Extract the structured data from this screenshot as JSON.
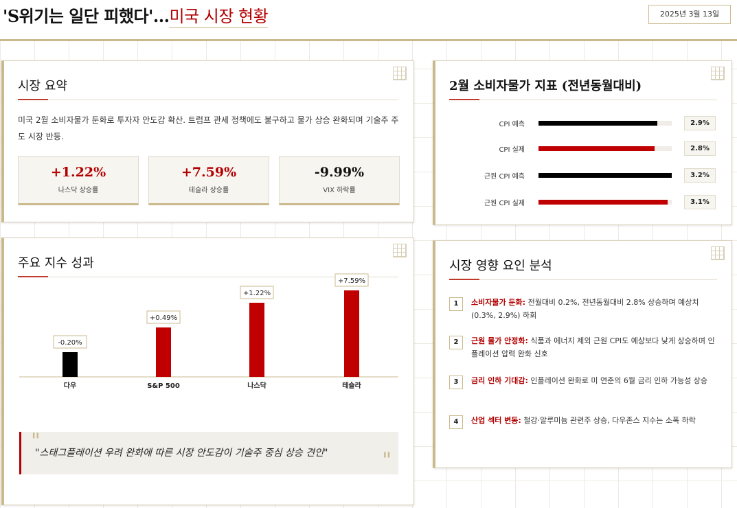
{
  "header": {
    "title_prefix": "'S위기는 일단 피했다'...",
    "title_accent": "미국 시장 현황",
    "date": "2025년 3월 13일"
  },
  "summary": {
    "title": "시장 요약",
    "text": "미국 2월 소비자물가 둔화로 투자자 안도감 확산. 트럼프 관세 정책에도 불구하고 물가 상승 완화되며 기술주 주도 시장 반등.",
    "stats": [
      {
        "value": "+1.22%",
        "label": "나스닥 상승률",
        "color": "#b30000"
      },
      {
        "value": "+7.59%",
        "label": "테슬라 상승률",
        "color": "#b30000"
      },
      {
        "value": "-9.99%",
        "label": "VIX 하락률",
        "color": "#111111"
      }
    ]
  },
  "cpi": {
    "title": "2월 소비자물가 지표 (전년동월대비)",
    "rows": [
      {
        "label": "CPI 예측",
        "value": "2.9%",
        "fill": 0.89,
        "color": "#000000"
      },
      {
        "label": "CPI 실제",
        "value": "2.8%",
        "fill": 0.87,
        "color": "#c00000"
      },
      {
        "label": "근원 CPI 예측",
        "value": "3.2%",
        "fill": 1.0,
        "color": "#000000"
      },
      {
        "label": "근원 CPI 실제",
        "value": "3.1%",
        "fill": 0.97,
        "color": "#c00000"
      }
    ]
  },
  "indices": {
    "title": "주요 지수 성과",
    "quote": "\"스태그플레이션 우려 완화에 따른 시장 안도감이 기술주 중심 상승 견인\""
  },
  "chart_data": {
    "type": "bar",
    "categories": [
      "다우",
      "S&P 500",
      "나스닥",
      "테슬라"
    ],
    "values": [
      -0.2,
      0.49,
      1.22,
      7.59
    ],
    "data_labels": [
      "-0.20%",
      "+0.49%",
      "+1.22%",
      "+7.59%"
    ],
    "colors": [
      "#000000",
      "#c00000",
      "#c00000",
      "#c00000"
    ],
    "title": "",
    "xlabel": "",
    "ylabel": "",
    "grid": false
  },
  "factors": {
    "title": "시장 영향 요인 분석",
    "items": [
      {
        "num": "1",
        "head": "소비자물가 둔화:",
        "body": " 전월대비 0.2%, 전년동월대비 2.8% 상승하며 예상치(0.3%, 2.9%) 하회"
      },
      {
        "num": "2",
        "head": "근원 물가 안정화:",
        "body": " 식품과 에너지 제외 근원 CPI도 예상보다 낮게 상승하며 인플레이션 압력 완화 신호"
      },
      {
        "num": "3",
        "head": "금리 인하 기대감:",
        "body": " 인플레이션 완화로 미 연준의 6월 금리 인하 가능성 상승"
      },
      {
        "num": "4",
        "head": "산업 섹터 변동:",
        "body": " 철강·알루미늄 관련주 상승, 다우존스 지수는 소폭 하락"
      }
    ]
  }
}
